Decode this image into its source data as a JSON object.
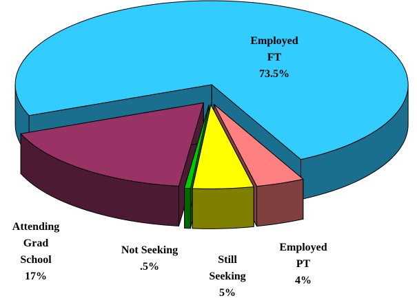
{
  "chart_data": {
    "type": "pie3d",
    "categories": [
      "Employed FT",
      "Employed PT",
      "Still Seeking",
      "Not Seeking",
      "Attending Grad School"
    ],
    "values": [
      73.5,
      4,
      5,
      0.5,
      17
    ],
    "value_labels": [
      "73.5%",
      "4%",
      "5%",
      ".5%",
      "17%"
    ],
    "colors": [
      "#33ccff",
      "#ff8080",
      "#ffff00",
      "#00cc00",
      "#993366"
    ],
    "side_colors": [
      "#1a6f8f",
      "#804040",
      "#808000",
      "#006600",
      "#4d1a33"
    ]
  }
}
